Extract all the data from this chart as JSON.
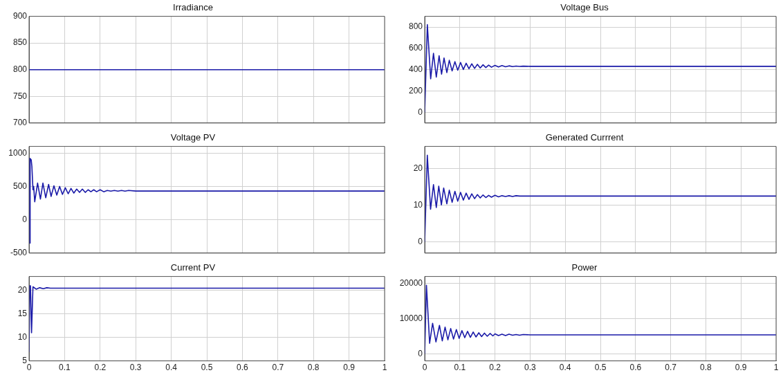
{
  "chart_data": [
    {
      "type": "line",
      "title": "Irradiance",
      "x": [
        0,
        1
      ],
      "values": [
        800,
        800
      ],
      "color": "#1a1aa8",
      "xlim": [
        0,
        1
      ],
      "xticks": [
        0,
        0.1,
        0.2,
        0.3,
        0.4,
        0.5,
        0.6,
        0.7,
        0.8,
        0.9,
        1
      ],
      "ylim": [
        700,
        900
      ],
      "yticks": [
        700,
        750,
        800,
        850,
        900
      ],
      "grid": true,
      "tick_labels": "y",
      "marker": "none"
    },
    {
      "type": "line",
      "title": "Voltage Bus",
      "x": [
        0,
        0.0075,
        0.017,
        0.025,
        0.033,
        0.041,
        0.048,
        0.055,
        0.063,
        0.07,
        0.078,
        0.086,
        0.094,
        0.102,
        0.11,
        0.118,
        0.126,
        0.134,
        0.142,
        0.15,
        0.158,
        0.166,
        0.174,
        0.182,
        0.19,
        0.2,
        0.21,
        0.22,
        0.23,
        0.24,
        0.25,
        0.26,
        0.27,
        0.28,
        0.3,
        1
      ],
      "values": [
        0,
        822,
        314,
        553,
        330,
        531,
        358,
        509,
        373,
        488,
        388,
        475,
        395,
        468,
        402,
        460,
        408,
        455,
        412,
        450,
        416,
        446,
        420,
        443,
        423,
        440,
        425,
        438,
        427,
        436,
        429,
        434,
        430,
        433,
        431,
        431
      ],
      "color": "#1a1aa8",
      "xlim": [
        0,
        1
      ],
      "xticks": [
        0,
        0.1,
        0.2,
        0.3,
        0.4,
        0.5,
        0.6,
        0.7,
        0.8,
        0.9,
        1
      ],
      "ylim": [
        -100,
        900
      ],
      "yticks": [
        0,
        200,
        400,
        600,
        800
      ],
      "grid": true,
      "tick_labels": "y",
      "marker": "none"
    },
    {
      "type": "line",
      "title": "Voltage PV",
      "x": [
        0,
        0.001,
        0.002,
        0.003,
        0.006,
        0.008,
        0.011,
        0.013,
        0.016,
        0.024,
        0.032,
        0.039,
        0.047,
        0.055,
        0.062,
        0.07,
        0.078,
        0.086,
        0.094,
        0.102,
        0.11,
        0.118,
        0.126,
        0.134,
        0.142,
        0.15,
        0.158,
        0.166,
        0.174,
        0.182,
        0.19,
        0.2,
        0.21,
        0.22,
        0.23,
        0.24,
        0.25,
        0.26,
        0.27,
        0.28,
        0.3,
        1
      ],
      "values": [
        0,
        920,
        -350,
        920,
        900,
        800,
        450,
        500,
        270,
        550,
        310,
        550,
        330,
        530,
        350,
        510,
        370,
        500,
        380,
        480,
        390,
        470,
        400,
        460,
        410,
        460,
        410,
        450,
        420,
        450,
        420,
        450,
        420,
        440,
        430,
        440,
        430,
        440,
        430,
        440,
        430,
        430
      ],
      "color": "#1a1aa8",
      "xlim": [
        0,
        1
      ],
      "xticks": [
        0,
        0.1,
        0.2,
        0.3,
        0.4,
        0.5,
        0.6,
        0.7,
        0.8,
        0.9,
        1
      ],
      "ylim": [
        -500,
        1100
      ],
      "yticks": [
        -500,
        0,
        500,
        1000
      ],
      "grid": true,
      "tick_labels": "y",
      "marker": "none"
    },
    {
      "type": "line",
      "title": "Generated Currrent",
      "x": [
        0,
        0.0074,
        0.0167,
        0.025,
        0.033,
        0.04,
        0.0475,
        0.054,
        0.063,
        0.07,
        0.078,
        0.086,
        0.094,
        0.102,
        0.11,
        0.118,
        0.126,
        0.134,
        0.142,
        0.15,
        0.158,
        0.166,
        0.174,
        0.182,
        0.19,
        0.2,
        0.21,
        0.22,
        0.23,
        0.24,
        0.25,
        0.26,
        0.27,
        0.28,
        0.3,
        1
      ],
      "values": [
        0,
        23.6,
        8.9,
        15.6,
        9.4,
        15.2,
        10.1,
        14.7,
        10.4,
        14.1,
        10.8,
        13.8,
        11.1,
        13.5,
        11.4,
        13.3,
        11.6,
        13.1,
        11.8,
        12.9,
        12.0,
        12.8,
        12.1,
        12.7,
        12.2,
        12.7,
        12.3,
        12.6,
        12.4,
        12.6,
        12.4,
        12.6,
        12.5,
        12.5,
        12.5,
        12.5
      ],
      "color": "#1a1aa8",
      "xlim": [
        0,
        1
      ],
      "xticks": [
        0,
        0.1,
        0.2,
        0.3,
        0.4,
        0.5,
        0.6,
        0.7,
        0.8,
        0.9,
        1
      ],
      "ylim": [
        -3,
        26
      ],
      "yticks": [
        0,
        10,
        20
      ],
      "grid": true,
      "tick_labels": "y",
      "marker": "none"
    },
    {
      "type": "line",
      "title": "Current PV",
      "x": [
        0,
        0.002,
        0.004,
        0.007,
        0.011,
        0.02,
        0.03,
        0.04,
        0.05,
        0.06,
        0.08,
        1
      ],
      "values": [
        6.9,
        21,
        21,
        11,
        20.8,
        20.3,
        20.6,
        20.4,
        20.6,
        20.5,
        20.5,
        20.5
      ],
      "color": "#1a1aa8",
      "xlim": [
        0,
        1
      ],
      "xticks": [
        0,
        0.1,
        0.2,
        0.3,
        0.4,
        0.5,
        0.6,
        0.7,
        0.8,
        0.9,
        1
      ],
      "ylim": [
        5,
        23
      ],
      "yticks": [
        5,
        10,
        15,
        20
      ],
      "grid": true,
      "marker": "none"
    },
    {
      "type": "line",
      "title": "Power",
      "x": [
        0,
        0.005,
        0.014,
        0.0225,
        0.032,
        0.042,
        0.05,
        0.058,
        0.066,
        0.074,
        0.082,
        0.09,
        0.098,
        0.106,
        0.114,
        0.122,
        0.13,
        0.138,
        0.146,
        0.154,
        0.162,
        0.17,
        0.178,
        0.186,
        0.194,
        0.2,
        0.21,
        0.22,
        0.23,
        0.24,
        0.25,
        0.26,
        0.27,
        0.28,
        0.3,
        1
      ],
      "values": [
        0,
        19500,
        3000,
        8700,
        3400,
        8100,
        3700,
        7600,
        4000,
        7200,
        4200,
        6900,
        4400,
        6600,
        4600,
        6400,
        4700,
        6200,
        4800,
        6000,
        4900,
        5900,
        5000,
        5800,
        5100,
        5700,
        5200,
        5600,
        5200,
        5600,
        5300,
        5500,
        5300,
        5500,
        5400,
        5400
      ],
      "color": "#1a1aa8",
      "xlim": [
        0,
        1
      ],
      "xticks": [
        0,
        0.1,
        0.2,
        0.3,
        0.4,
        0.5,
        0.6,
        0.7,
        0.8,
        0.9,
        1
      ],
      "ylim": [
        -2000,
        22000
      ],
      "yticks": [
        0,
        10000,
        20000
      ],
      "grid": true,
      "marker": "none"
    }
  ]
}
